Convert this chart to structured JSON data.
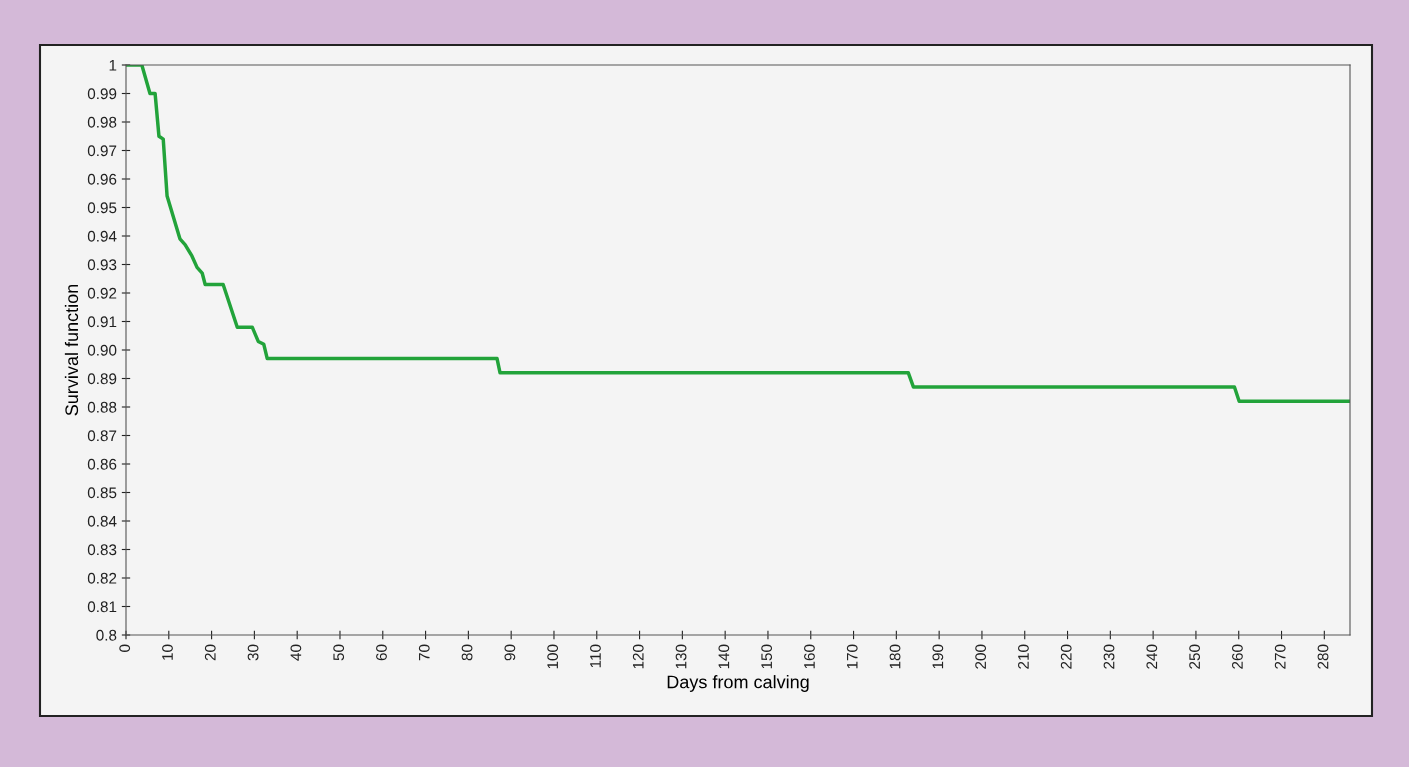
{
  "chart_data": {
    "type": "line",
    "xlabel": "Days from calving",
    "ylabel": "Survival function",
    "series": [
      {
        "color": "#22a33a",
        "x": [
          0,
          3.7,
          5.6,
          6.8,
          7.7,
          8.7,
          9.6,
          12.6,
          13.8,
          15.4,
          16.6,
          17.8,
          18.5,
          22.7,
          26,
          29.5,
          30.9,
          32.2,
          33,
          86.7,
          87.4,
          182.8,
          184,
          259,
          260.1,
          286
        ],
        "values": [
          1,
          1,
          0.99,
          0.99,
          0.975,
          0.974,
          0.954,
          0.939,
          0.937,
          0.933,
          0.929,
          0.927,
          0.923,
          0.923,
          0.908,
          0.908,
          0.903,
          0.902,
          0.897,
          0.897,
          0.892,
          0.892,
          0.887,
          0.887,
          0.882,
          0.882
        ]
      }
    ],
    "xlim": [
      0,
      286
    ],
    "ylim": [
      0.8,
      1
    ],
    "xticks": [
      0,
      10,
      20,
      30,
      40,
      50,
      60,
      70,
      80,
      90,
      100,
      110,
      120,
      130,
      140,
      150,
      160,
      170,
      180,
      190,
      200,
      210,
      220,
      230,
      240,
      250,
      260,
      270,
      280
    ],
    "yticks": [
      0.8,
      0.81,
      0.82,
      0.83,
      0.84,
      0.85,
      0.86,
      0.87,
      0.88,
      0.89,
      {
        "value": 0.9,
        "label": "0.90"
      },
      0.91,
      0.92,
      0.93,
      0.94,
      0.95,
      0.96,
      0.97,
      0.98,
      0.99,
      1
    ],
    "grid": false,
    "legend": false,
    "marker": "none",
    "line_style": "solid"
  }
}
